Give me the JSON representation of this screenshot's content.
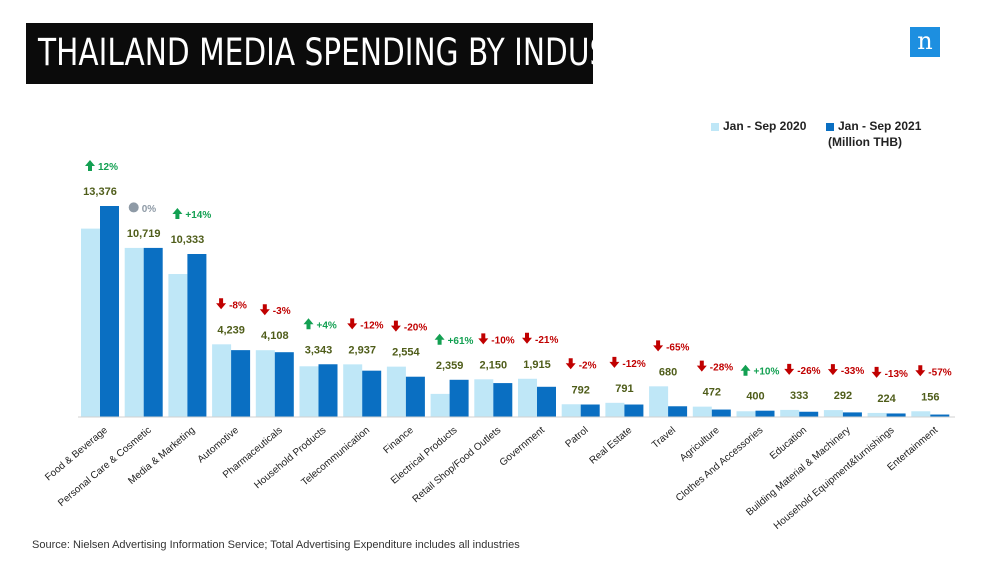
{
  "title": "THAILAND MEDIA SPENDING BY INDUSTRY",
  "logo_text": "n",
  "source": "Source: Nielsen Advertising Information Service; Total Advertising Expenditure includes all industries",
  "colors": {
    "series_2020": "#bfe7f7",
    "series_2021": "#0a6fc2",
    "up": "#13a052",
    "down": "#c00000",
    "flat": "#8e9aa6",
    "value_label": "#4f5d1a"
  },
  "chart_data": {
    "type": "bar",
    "unit_note": "(Million THB)",
    "categories": [
      "Food & Beverage",
      "Personal Care & Cosmetic",
      "Media & Marketing",
      "Automotive",
      "Pharmaceuticals",
      "Household Products",
      "Telecommunication",
      "Finance",
      "Electrical Products",
      "Retail Shop/Food Outlets",
      "Government",
      "Patrol",
      "Real Estate",
      "Travel",
      "Agriculture",
      "Clothes And Accessories",
      "Education",
      "Building Material & Machinery",
      "Household Equipment&furnishings",
      "Entertainment"
    ],
    "series": [
      {
        "name": "Jan - Sep 2020",
        "values": [
          11943,
          10719,
          9064,
          4608,
          4235,
          3215,
          3338,
          3193,
          1465,
          2389,
          2424,
          808,
          899,
          1945,
          656,
          364,
          450,
          438,
          258,
          363
        ]
      },
      {
        "name": "Jan - Sep 2021",
        "values": [
          13376,
          10719,
          10333,
          4239,
          4108,
          3343,
          2937,
          2554,
          2359,
          2150,
          1915,
          792,
          791,
          680,
          472,
          400,
          333,
          292,
          224,
          156
        ]
      }
    ],
    "value_labels": [
      "13,376",
      "10,719",
      "10,333",
      "4,239",
      "4,108",
      "3,343",
      "2,937",
      "2,554",
      "2,359",
      "2,150",
      "1,915",
      "792",
      "791",
      "680",
      "472",
      "400",
      "333",
      "292",
      "224",
      "156"
    ],
    "changes": [
      "12%",
      "0%",
      "+14%",
      "-8%",
      "-3%",
      "+4%",
      "-12%",
      "-20%",
      "+61%",
      "-10%",
      "-21%",
      "-2%",
      "-12%",
      "-65%",
      "-28%",
      "+10%",
      "-26%",
      "-33%",
      "-13%",
      "-57%"
    ],
    "change_direction": [
      "up",
      "flat",
      "up",
      "down",
      "down",
      "up",
      "down",
      "down",
      "up",
      "down",
      "down",
      "down",
      "down",
      "down",
      "down",
      "up",
      "down",
      "down",
      "down",
      "down"
    ],
    "ylim": [
      0,
      16000
    ],
    "legend_position": "top-right",
    "grid": false
  }
}
